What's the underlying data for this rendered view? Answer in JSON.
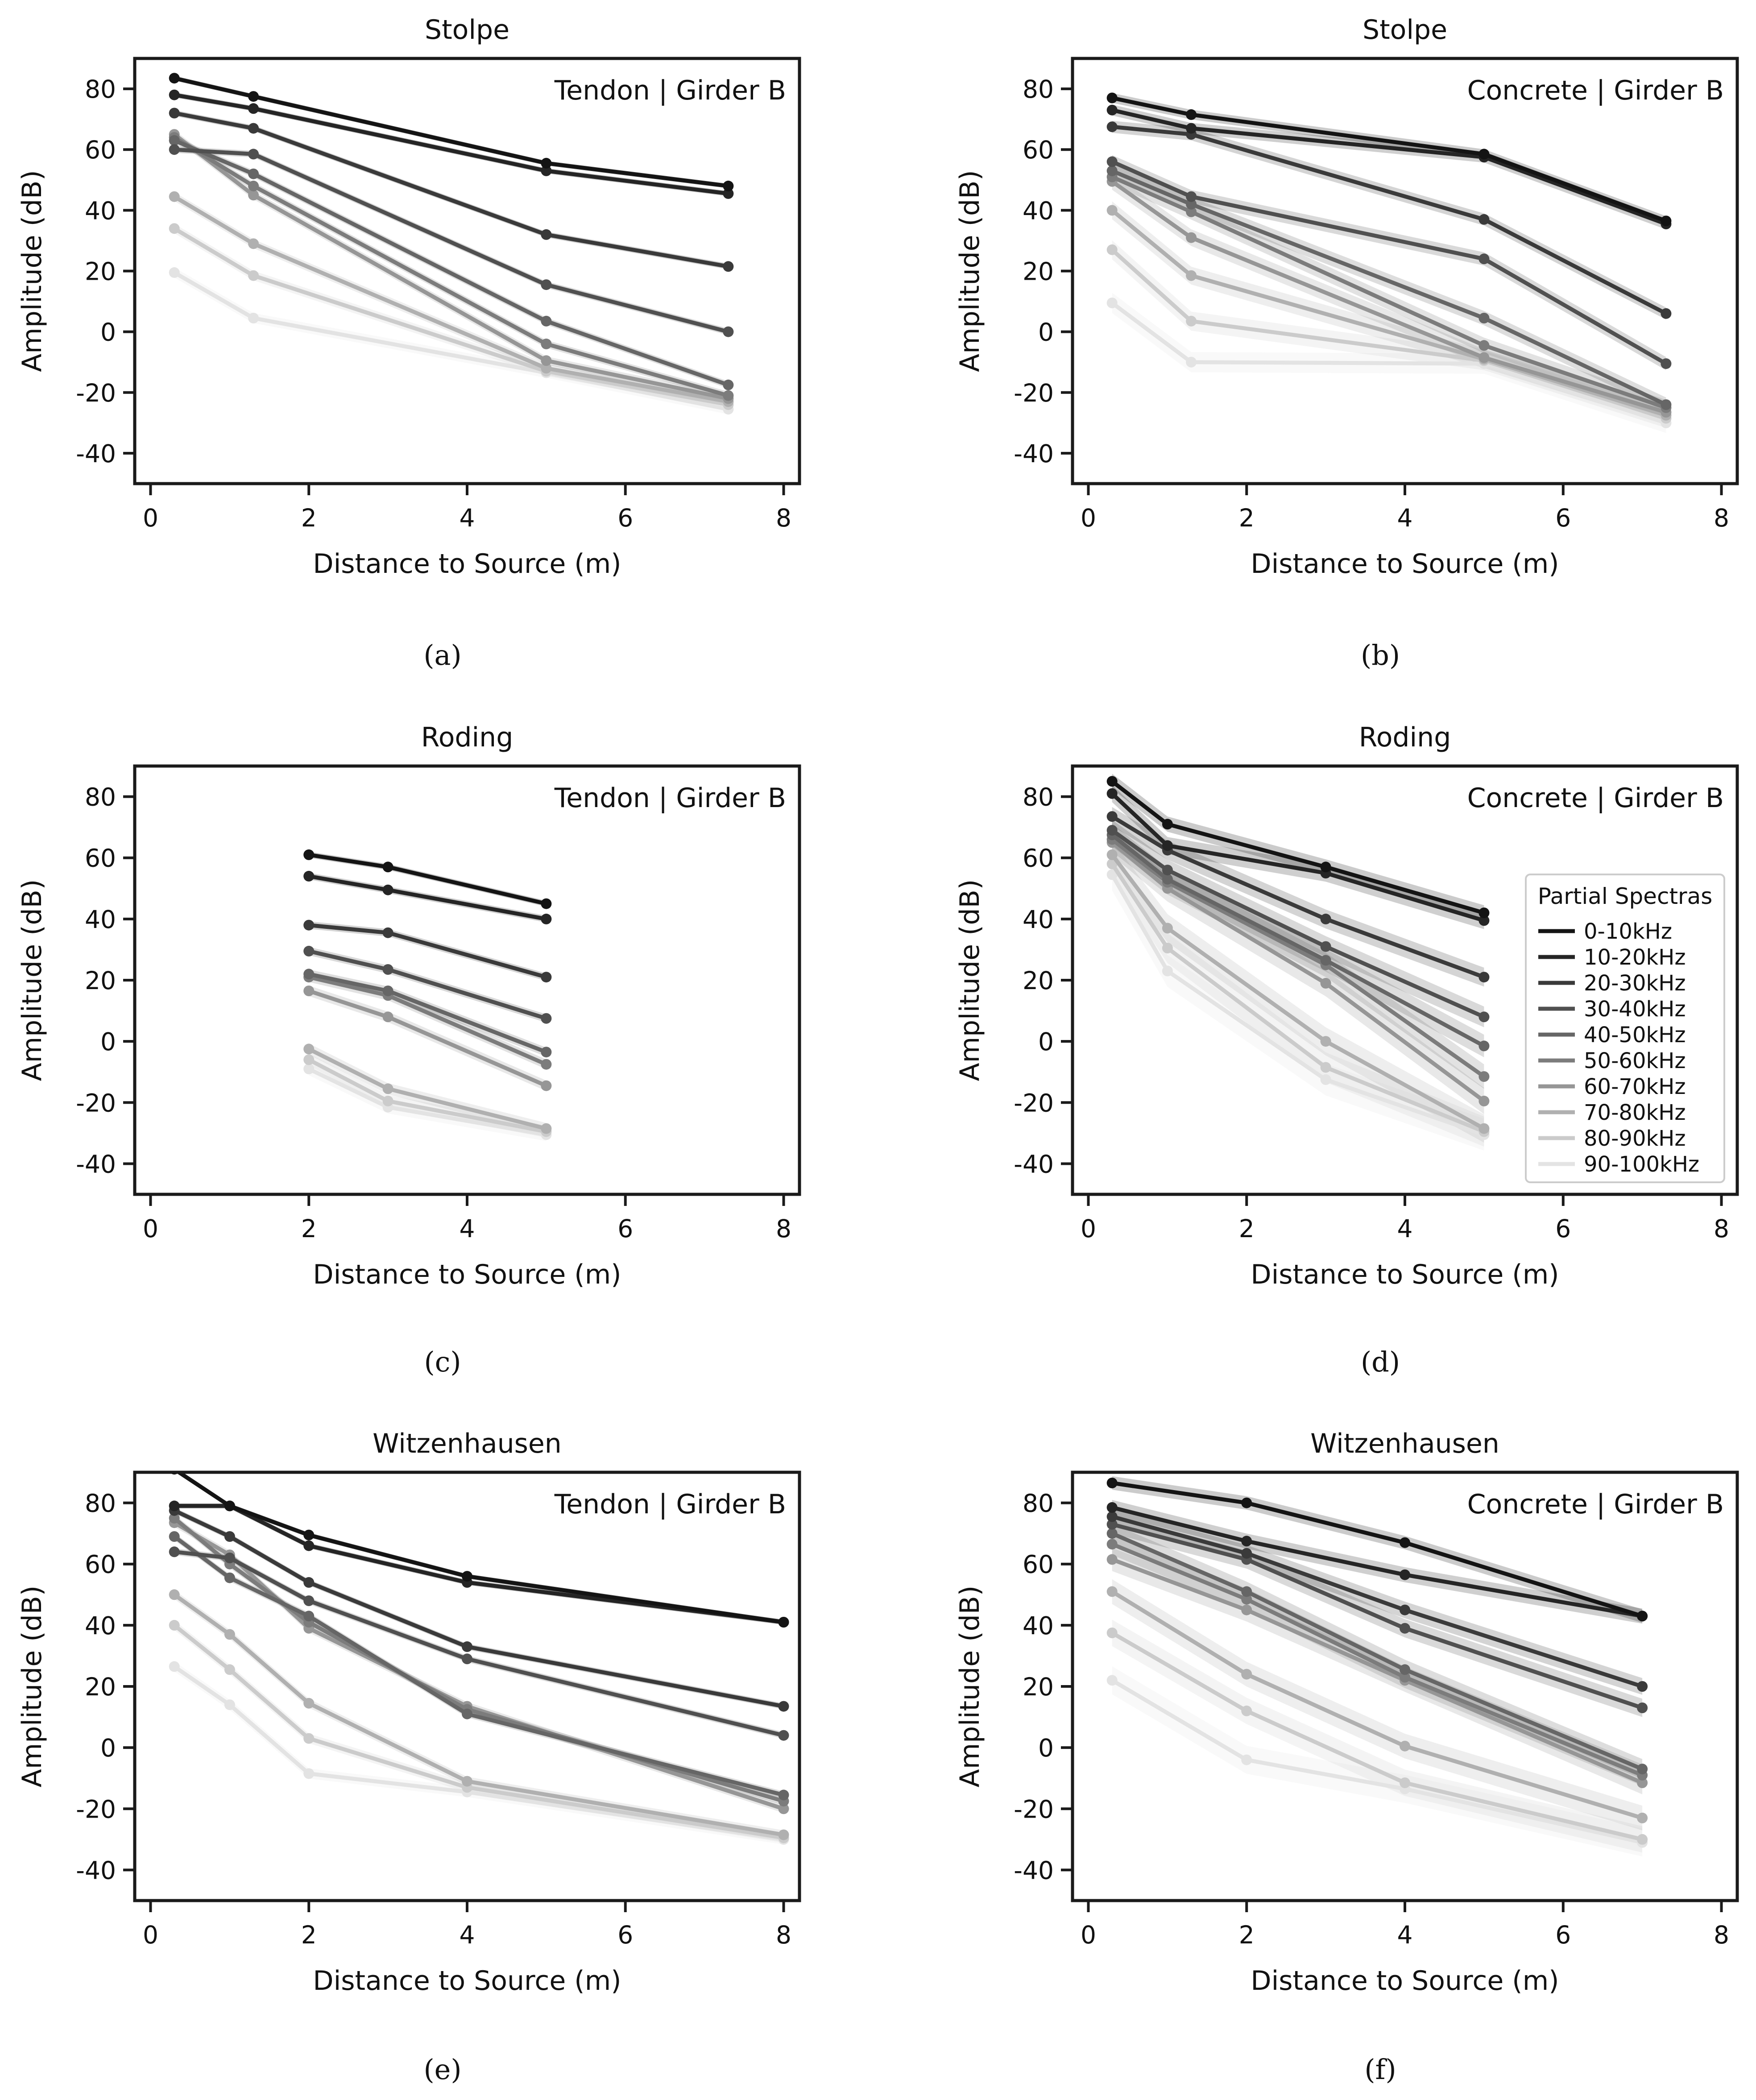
{
  "figure": {
    "labels": {
      "ylabel": "Amplitude (dB)",
      "xlabel": "Distance to Source (m)",
      "legend_title": "Partial Spectras"
    },
    "series_names": [
      "0-10kHz",
      "10-20kHz",
      "20-30kHz",
      "30-40kHz",
      "40-50kHz",
      "50-60kHz",
      "60-70kHz",
      "70-80kHz",
      "80-90kHz",
      "90-100kHz"
    ],
    "series_colors": [
      "#141414",
      "#252525",
      "#3a3a3a",
      "#505050",
      "#666666",
      "#7c7c7c",
      "#969696",
      "#b0b0b0",
      "#cbcbcb",
      "#e3e3e3"
    ]
  },
  "chart_data": [
    {
      "id": "a",
      "type": "line",
      "title": "Stolpe",
      "annotation": "Tendon | Girder B",
      "caption": "(a)",
      "xlim": [
        -0.2,
        8.2
      ],
      "ylim": [
        -50,
        90
      ],
      "xticks": [
        0,
        2,
        4,
        6,
        8
      ],
      "yticks": [
        -40,
        -20,
        0,
        20,
        40,
        60,
        80
      ],
      "x": [
        0.3,
        1.3,
        5.0,
        7.3
      ],
      "band": 0.8,
      "legend": false,
      "series": [
        {
          "name": "0-10kHz",
          "values": [
            83.5,
            77.5,
            55.5,
            48.0
          ]
        },
        {
          "name": "10-20kHz",
          "values": [
            78.0,
            73.5,
            53.0,
            45.5
          ]
        },
        {
          "name": "20-30kHz",
          "values": [
            72.0,
            67.0,
            32.0,
            21.5
          ]
        },
        {
          "name": "30-40kHz",
          "values": [
            60.0,
            58.5,
            15.5,
            0.0
          ]
        },
        {
          "name": "40-50kHz",
          "values": [
            63.0,
            52.0,
            3.5,
            -17.5
          ]
        },
        {
          "name": "50-60kHz",
          "values": [
            64.0,
            48.0,
            -4.0,
            -21.0
          ]
        },
        {
          "name": "60-70kHz",
          "values": [
            65.0,
            45.0,
            -9.5,
            -22.0
          ]
        },
        {
          "name": "70-80kHz",
          "values": [
            44.5,
            29.0,
            -12.0,
            -23.0
          ]
        },
        {
          "name": "80-90kHz",
          "values": [
            34.0,
            18.5,
            -13.0,
            -24.0
          ]
        },
        {
          "name": "90-100kHz",
          "values": [
            19.5,
            4.5,
            -13.5,
            -25.5
          ]
        }
      ]
    },
    {
      "id": "b",
      "type": "line",
      "title": "Stolpe",
      "annotation": "Concrete | Girder B",
      "caption": "(b)",
      "xlim": [
        -0.2,
        8.2
      ],
      "ylim": [
        -50,
        90
      ],
      "xticks": [
        0,
        2,
        4,
        6,
        8
      ],
      "yticks": [
        -40,
        -20,
        0,
        20,
        40,
        60,
        80
      ],
      "x": [
        0.3,
        1.3,
        5.0,
        7.3
      ],
      "band": 1.6,
      "legend": false,
      "series": [
        {
          "name": "0-10kHz",
          "values": [
            77.0,
            71.5,
            58.5,
            36.5
          ]
        },
        {
          "name": "10-20kHz",
          "values": [
            73.0,
            67.0,
            57.5,
            35.5
          ]
        },
        {
          "name": "20-30kHz",
          "values": [
            67.5,
            65.0,
            37.0,
            6.0
          ]
        },
        {
          "name": "30-40kHz",
          "values": [
            56.0,
            44.5,
            24.0,
            -10.5
          ]
        },
        {
          "name": "40-50kHz",
          "values": [
            53.0,
            42.0,
            4.5,
            -24.0
          ]
        },
        {
          "name": "50-60kHz",
          "values": [
            51.0,
            39.5,
            -4.5,
            -25.0
          ]
        },
        {
          "name": "60-70kHz",
          "values": [
            49.5,
            31.0,
            -8.5,
            -26.5
          ]
        },
        {
          "name": "70-80kHz",
          "values": [
            40.0,
            18.5,
            -9.0,
            -27.5
          ]
        },
        {
          "name": "80-90kHz",
          "values": [
            27.0,
            3.5,
            -9.5,
            -28.5
          ]
        },
        {
          "name": "90-100kHz",
          "values": [
            9.5,
            -10.0,
            -10.5,
            -30.0
          ]
        }
      ]
    },
    {
      "id": "c",
      "type": "line",
      "title": "Roding",
      "annotation": "Tendon | Girder B",
      "caption": "(c)",
      "xlim": [
        -0.2,
        8.2
      ],
      "ylim": [
        -50,
        90
      ],
      "xticks": [
        0,
        2,
        4,
        6,
        8
      ],
      "yticks": [
        -40,
        -20,
        0,
        20,
        40,
        60,
        80
      ],
      "x": [
        2.0,
        3.0,
        5.0
      ],
      "band": 1.0,
      "legend": false,
      "series": [
        {
          "name": "0-10kHz",
          "values": [
            61.0,
            57.0,
            45.0
          ]
        },
        {
          "name": "10-20kHz",
          "values": [
            54.0,
            49.5,
            40.0
          ]
        },
        {
          "name": "20-30kHz",
          "values": [
            38.0,
            35.5,
            21.0
          ]
        },
        {
          "name": "30-40kHz",
          "values": [
            29.5,
            23.5,
            7.5
          ]
        },
        {
          "name": "40-50kHz",
          "values": [
            22.0,
            16.5,
            -3.5
          ]
        },
        {
          "name": "50-60kHz",
          "values": [
            21.0,
            15.0,
            -7.5
          ]
        },
        {
          "name": "60-70kHz",
          "values": [
            16.5,
            8.0,
            -14.5
          ]
        },
        {
          "name": "70-80kHz",
          "values": [
            -2.5,
            -15.5,
            -28.5
          ]
        },
        {
          "name": "80-90kHz",
          "values": [
            -6.0,
            -19.5,
            -29.5
          ]
        },
        {
          "name": "90-100kHz",
          "values": [
            -9.0,
            -21.5,
            -30.5
          ]
        }
      ]
    },
    {
      "id": "d",
      "type": "line",
      "title": "Roding",
      "annotation": "Concrete | Girder B",
      "caption": "(d)",
      "xlim": [
        -0.2,
        8.2
      ],
      "ylim": [
        -50,
        90
      ],
      "xticks": [
        0,
        2,
        4,
        6,
        8
      ],
      "yticks": [
        -40,
        -20,
        0,
        20,
        40,
        60,
        80
      ],
      "x": [
        0.3,
        1.0,
        3.0,
        5.0
      ],
      "band": 2.5,
      "legend": true,
      "series": [
        {
          "name": "0-10kHz",
          "values": [
            85.0,
            71.0,
            57.0,
            42.0
          ]
        },
        {
          "name": "10-20kHz",
          "values": [
            81.0,
            64.0,
            55.0,
            39.5
          ]
        },
        {
          "name": "20-30kHz",
          "values": [
            73.5,
            62.5,
            40.0,
            21.0
          ]
        },
        {
          "name": "30-40kHz",
          "values": [
            69.0,
            56.0,
            31.0,
            8.0
          ]
        },
        {
          "name": "40-50kHz",
          "values": [
            67.5,
            53.0,
            26.5,
            -1.5
          ]
        },
        {
          "name": "50-60kHz",
          "values": [
            66.0,
            52.0,
            25.0,
            -11.5
          ]
        },
        {
          "name": "60-70kHz",
          "values": [
            65.0,
            50.0,
            19.0,
            -19.5
          ]
        },
        {
          "name": "70-80kHz",
          "values": [
            61.0,
            37.0,
            0.0,
            -28.5
          ]
        },
        {
          "name": "80-90kHz",
          "values": [
            58.0,
            30.5,
            -8.5,
            -29.5
          ]
        },
        {
          "name": "90-100kHz",
          "values": [
            54.5,
            23.0,
            -12.5,
            -30.5
          ]
        }
      ]
    },
    {
      "id": "e",
      "type": "line",
      "title": "Witzenhausen",
      "annotation": "Tendon | Girder B",
      "caption": "(e)",
      "xlim": [
        -0.2,
        8.2
      ],
      "ylim": [
        -50,
        90
      ],
      "xticks": [
        0,
        2,
        4,
        6,
        8
      ],
      "yticks": [
        -40,
        -20,
        0,
        20,
        40,
        60,
        80
      ],
      "x": [
        0.3,
        1.0,
        2.0,
        4.0,
        8.0
      ],
      "band": 0.8,
      "legend": false,
      "series": [
        {
          "name": "0-10kHz",
          "values": [
            91.0,
            79.0,
            69.5,
            56.0,
            41.0
          ]
        },
        {
          "name": "10-20kHz",
          "values": [
            79.0,
            79.0,
            66.0,
            54.0,
            41.0
          ]
        },
        {
          "name": "20-30kHz",
          "values": [
            77.5,
            69.0,
            54.0,
            33.0,
            13.5
          ]
        },
        {
          "name": "30-40kHz",
          "values": [
            64.0,
            62.0,
            48.0,
            29.0,
            4.0
          ]
        },
        {
          "name": "40-50kHz",
          "values": [
            69.0,
            55.5,
            43.0,
            11.0,
            -15.5
          ]
        },
        {
          "name": "50-60kHz",
          "values": [
            75.0,
            60.0,
            41.0,
            12.5,
            -17.5
          ]
        },
        {
          "name": "60-70kHz",
          "values": [
            73.5,
            63.0,
            39.0,
            13.5,
            -20.0
          ]
        },
        {
          "name": "70-80kHz",
          "values": [
            50.0,
            37.0,
            14.5,
            -11.0,
            -28.5
          ]
        },
        {
          "name": "80-90kHz",
          "values": [
            40.0,
            25.5,
            3.0,
            -13.0,
            -29.5
          ]
        },
        {
          "name": "90-100kHz",
          "values": [
            26.5,
            14.0,
            -8.5,
            -14.5,
            -30.0
          ]
        }
      ]
    },
    {
      "id": "f",
      "type": "line",
      "title": "Witzenhausen",
      "annotation": "Concrete | Girder B",
      "caption": "(f)",
      "xlim": [
        -0.2,
        8.2
      ],
      "ylim": [
        -50,
        90
      ],
      "xticks": [
        0,
        2,
        4,
        6,
        8
      ],
      "yticks": [
        -40,
        -20,
        0,
        20,
        40,
        60,
        80
      ],
      "x": [
        0.3,
        2.0,
        4.0,
        7.0
      ],
      "band": 2.2,
      "legend": false,
      "series": [
        {
          "name": "0-10kHz",
          "values": [
            86.5,
            80.0,
            67.0,
            43.0
          ]
        },
        {
          "name": "10-20kHz",
          "values": [
            78.5,
            67.5,
            56.5,
            43.0
          ]
        },
        {
          "name": "20-30kHz",
          "values": [
            75.5,
            63.5,
            45.0,
            20.0
          ]
        },
        {
          "name": "30-40kHz",
          "values": [
            73.0,
            61.5,
            39.0,
            13.0
          ]
        },
        {
          "name": "40-50kHz",
          "values": [
            70.0,
            51.0,
            25.5,
            -7.0
          ]
        },
        {
          "name": "50-60kHz",
          "values": [
            66.5,
            48.5,
            23.0,
            -9.0
          ]
        },
        {
          "name": "60-70kHz",
          "values": [
            61.5,
            45.0,
            22.0,
            -11.5
          ]
        },
        {
          "name": "70-80kHz",
          "values": [
            51.0,
            24.0,
            0.5,
            -23.0
          ]
        },
        {
          "name": "80-90kHz",
          "values": [
            37.5,
            12.0,
            -11.5,
            -30.0
          ]
        },
        {
          "name": "90-100kHz",
          "values": [
            22.0,
            -4.0,
            -13.5,
            -31.0
          ]
        }
      ]
    }
  ]
}
